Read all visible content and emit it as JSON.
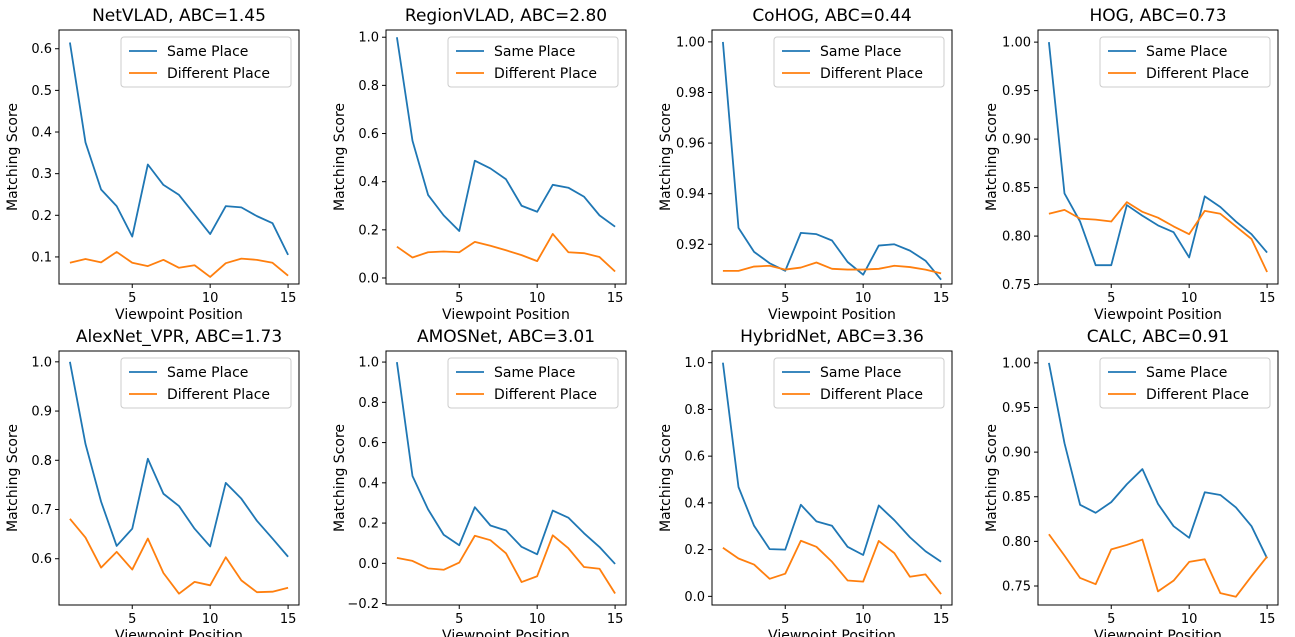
{
  "chart_data": [
    {
      "type": "line",
      "title": "NetVLAD, ABC=1.45",
      "xlabel": "Viewpoint Position",
      "ylabel": "Matching Score",
      "xlim": [
        0.3,
        15.7
      ],
      "ylim": [
        0.035,
        0.645
      ],
      "xticks": [
        5,
        10,
        15
      ],
      "yticks": [
        0.1,
        0.2,
        0.3,
        0.4,
        0.5,
        0.6
      ],
      "tick_decimals": 1,
      "legend_position": "top-right",
      "x": [
        1,
        2,
        3,
        4,
        5,
        6,
        7,
        8,
        9,
        10,
        11,
        12,
        13,
        14,
        15
      ],
      "series": [
        {
          "name": "Same Place",
          "color": "#1f77b4",
          "values": [
            0.615,
            0.375,
            0.262,
            0.222,
            0.149,
            0.322,
            0.273,
            0.249,
            0.202,
            0.155,
            0.222,
            0.219,
            0.198,
            0.181,
            0.105
          ]
        },
        {
          "name": "Different Place",
          "color": "#ff7f0e",
          "values": [
            0.086,
            0.095,
            0.087,
            0.112,
            0.086,
            0.078,
            0.093,
            0.074,
            0.08,
            0.052,
            0.085,
            0.096,
            0.093,
            0.086,
            0.055
          ]
        }
      ]
    },
    {
      "type": "line",
      "title": "RegionVLAD, ABC=2.80",
      "xlabel": "Viewpoint Position",
      "ylabel": "Matching Score",
      "xlim": [
        0.3,
        15.7
      ],
      "ylim": [
        -0.025,
        1.03
      ],
      "xticks": [
        5,
        10,
        15
      ],
      "yticks": [
        0.0,
        0.2,
        0.4,
        0.6,
        0.8,
        1.0
      ],
      "tick_decimals": 1,
      "legend_position": "top-right",
      "x": [
        1,
        2,
        3,
        4,
        5,
        6,
        7,
        8,
        9,
        10,
        11,
        12,
        13,
        14,
        15
      ],
      "series": [
        {
          "name": "Same Place",
          "color": "#1f77b4",
          "values": [
            1.0,
            0.57,
            0.345,
            0.26,
            0.195,
            0.487,
            0.455,
            0.41,
            0.3,
            0.275,
            0.387,
            0.375,
            0.338,
            0.26,
            0.213
          ]
        },
        {
          "name": "Different Place",
          "color": "#ff7f0e",
          "values": [
            0.13,
            0.085,
            0.107,
            0.11,
            0.107,
            0.15,
            0.134,
            0.115,
            0.095,
            0.07,
            0.183,
            0.107,
            0.103,
            0.087,
            0.027
          ]
        }
      ]
    },
    {
      "type": "line",
      "title": "CoHOG, ABC=0.44",
      "xlabel": "Viewpoint Position",
      "ylabel": "Matching Score",
      "xlim": [
        0.3,
        15.7
      ],
      "ylim": [
        0.9043,
        1.0047
      ],
      "xticks": [
        5,
        10,
        15
      ],
      "yticks": [
        0.92,
        0.94,
        0.96,
        0.98,
        1.0
      ],
      "tick_decimals": 2,
      "legend_position": "top-right",
      "x": [
        1,
        2,
        3,
        4,
        5,
        6,
        7,
        8,
        9,
        10,
        11,
        12,
        13,
        14,
        15
      ],
      "series": [
        {
          "name": "Same Place",
          "color": "#1f77b4",
          "values": [
            1.0,
            0.9265,
            0.917,
            0.9125,
            0.9095,
            0.9245,
            0.924,
            0.9215,
            0.913,
            0.908,
            0.9195,
            0.92,
            0.9175,
            0.9135,
            0.906
          ]
        },
        {
          "name": "Different Place",
          "color": "#ff7f0e",
          "values": [
            0.9095,
            0.9095,
            0.9112,
            0.9115,
            0.91,
            0.9108,
            0.9128,
            0.9103,
            0.91,
            0.91,
            0.9103,
            0.9115,
            0.911,
            0.91,
            0.9085
          ]
        }
      ]
    },
    {
      "type": "line",
      "title": "HOG, ABC=0.73",
      "xlabel": "Viewpoint Position",
      "ylabel": "Matching Score",
      "xlim": [
        0.3,
        15.7
      ],
      "ylim": [
        0.7506,
        1.0125
      ],
      "xticks": [
        5,
        10,
        15
      ],
      "yticks": [
        0.75,
        0.8,
        0.85,
        0.9,
        0.95,
        1.0
      ],
      "tick_decimals": 2,
      "legend_position": "top-right",
      "x": [
        1,
        2,
        3,
        4,
        5,
        6,
        7,
        8,
        9,
        10,
        11,
        12,
        13,
        14,
        15
      ],
      "series": [
        {
          "name": "Same Place",
          "color": "#1f77b4",
          "values": [
            1.0,
            0.844,
            0.815,
            0.77,
            0.77,
            0.832,
            0.821,
            0.811,
            0.804,
            0.778,
            0.841,
            0.83,
            0.815,
            0.802,
            0.783
          ]
        },
        {
          "name": "Different Place",
          "color": "#ff7f0e",
          "values": [
            0.823,
            0.827,
            0.818,
            0.817,
            0.815,
            0.835,
            0.825,
            0.819,
            0.81,
            0.802,
            0.826,
            0.823,
            0.81,
            0.797,
            0.763
          ]
        }
      ]
    },
    {
      "type": "line",
      "title": "AlexNet_VPR, ABC=1.73",
      "xlabel": "Viewpoint Position",
      "ylabel": "Matching Score",
      "xlim": [
        0.3,
        15.7
      ],
      "ylim": [
        0.506,
        1.022
      ],
      "xticks": [
        5,
        10,
        15
      ],
      "yticks": [
        0.6,
        0.7,
        0.8,
        0.9,
        1.0
      ],
      "tick_decimals": 1,
      "legend_position": "top-right",
      "x": [
        1,
        2,
        3,
        4,
        5,
        6,
        7,
        8,
        9,
        10,
        11,
        12,
        13,
        14,
        15
      ],
      "series": [
        {
          "name": "Same Place",
          "color": "#1f77b4",
          "values": [
            1.0,
            0.833,
            0.716,
            0.626,
            0.661,
            0.803,
            0.732,
            0.707,
            0.661,
            0.625,
            0.754,
            0.722,
            0.677,
            0.641,
            0.604
          ]
        },
        {
          "name": "Different Place",
          "color": "#ff7f0e",
          "values": [
            0.681,
            0.643,
            0.582,
            0.614,
            0.578,
            0.641,
            0.571,
            0.529,
            0.553,
            0.546,
            0.603,
            0.556,
            0.532,
            0.533,
            0.541
          ]
        }
      ]
    },
    {
      "type": "line",
      "title": "AMOSNet, ABC=3.01",
      "xlabel": "Viewpoint Position",
      "ylabel": "Matching Score",
      "xlim": [
        0.3,
        15.7
      ],
      "ylim": [
        -0.207,
        1.055
      ],
      "xticks": [
        5,
        10,
        15
      ],
      "yticks": [
        -0.2,
        0.0,
        0.2,
        0.4,
        0.6,
        0.8,
        1.0
      ],
      "tick_decimals": 1,
      "legend_position": "top-right",
      "x": [
        1,
        2,
        3,
        4,
        5,
        6,
        7,
        8,
        9,
        10,
        11,
        12,
        13,
        14,
        15
      ],
      "series": [
        {
          "name": "Same Place",
          "color": "#1f77b4",
          "values": [
            1.0,
            0.434,
            0.268,
            0.142,
            0.09,
            0.279,
            0.188,
            0.163,
            0.082,
            0.045,
            0.262,
            0.227,
            0.15,
            0.081,
            -0.003
          ]
        },
        {
          "name": "Different Place",
          "color": "#ff7f0e",
          "values": [
            0.027,
            0.012,
            -0.025,
            -0.032,
            0.004,
            0.137,
            0.115,
            0.05,
            -0.093,
            -0.064,
            0.139,
            0.075,
            -0.018,
            -0.027,
            -0.15
          ]
        }
      ]
    },
    {
      "type": "line",
      "title": "HybridNet, ABC=3.36",
      "xlabel": "Viewpoint Position",
      "ylabel": "Matching Score",
      "xlim": [
        0.3,
        15.7
      ],
      "ylim": [
        -0.037,
        1.05
      ],
      "xticks": [
        5,
        10,
        15
      ],
      "yticks": [
        0.0,
        0.2,
        0.4,
        0.6,
        0.8,
        1.0
      ],
      "tick_decimals": 1,
      "legend_position": "top-right",
      "x": [
        1,
        2,
        3,
        4,
        5,
        6,
        7,
        8,
        9,
        10,
        11,
        12,
        13,
        14,
        15
      ],
      "series": [
        {
          "name": "Same Place",
          "color": "#1f77b4",
          "values": [
            1.0,
            0.468,
            0.302,
            0.202,
            0.2,
            0.392,
            0.321,
            0.302,
            0.212,
            0.177,
            0.389,
            0.326,
            0.253,
            0.193,
            0.148
          ]
        },
        {
          "name": "Different Place",
          "color": "#ff7f0e",
          "values": [
            0.208,
            0.162,
            0.136,
            0.075,
            0.097,
            0.238,
            0.212,
            0.148,
            0.068,
            0.063,
            0.237,
            0.185,
            0.084,
            0.094,
            0.01
          ]
        }
      ]
    },
    {
      "type": "line",
      "title": "CALC, ABC=0.91",
      "xlabel": "Viewpoint Position",
      "ylabel": "Matching Score",
      "xlim": [
        0.3,
        15.7
      ],
      "ylim": [
        0.7287,
        1.0133
      ],
      "xticks": [
        5,
        10,
        15
      ],
      "yticks": [
        0.75,
        0.8,
        0.85,
        0.9,
        0.95,
        1.0
      ],
      "tick_decimals": 2,
      "legend_position": "top-right",
      "x": [
        1,
        2,
        3,
        4,
        5,
        6,
        7,
        8,
        9,
        10,
        11,
        12,
        13,
        14,
        15
      ],
      "series": [
        {
          "name": "Same Place",
          "color": "#1f77b4",
          "values": [
            1.0,
            0.91,
            0.841,
            0.832,
            0.844,
            0.864,
            0.881,
            0.842,
            0.817,
            0.804,
            0.855,
            0.852,
            0.838,
            0.817,
            0.781
          ]
        },
        {
          "name": "Different Place",
          "color": "#ff7f0e",
          "values": [
            0.808,
            0.784,
            0.759,
            0.752,
            0.791,
            0.796,
            0.802,
            0.744,
            0.756,
            0.777,
            0.78,
            0.742,
            0.738,
            0.761,
            0.783
          ]
        }
      ]
    }
  ]
}
